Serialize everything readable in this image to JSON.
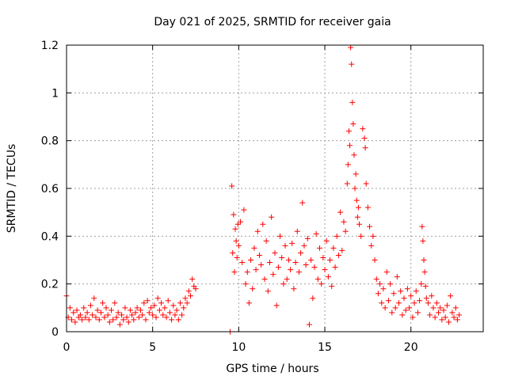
{
  "chart_data": {
    "type": "scatter",
    "title": "Day 021 of 2025, SRMTID for receiver gaia",
    "xlabel": "GPS time / hours",
    "ylabel": "SRMTID / TECUs",
    "xlim": [
      0,
      24.2
    ],
    "ylim": [
      0,
      1.2
    ],
    "xticks": [
      0,
      5,
      10,
      15,
      20
    ],
    "xtick_labels": [
      "0",
      "5",
      "10",
      "15",
      "20"
    ],
    "yticks": [
      0,
      0.2,
      0.4,
      0.6,
      0.8,
      1.0,
      1.2
    ],
    "ytick_labels": [
      "0",
      "0.2",
      "0.4",
      "0.6",
      "0.8",
      "1",
      "1.2"
    ],
    "grid": true,
    "marker": "plus",
    "color": "#ff0000",
    "series": [
      {
        "name": "SRMTID",
        "points": [
          [
            0.0,
            0.15
          ],
          [
            0.1,
            0.06
          ],
          [
            0.2,
            0.1
          ],
          [
            0.3,
            0.05
          ],
          [
            0.4,
            0.08
          ],
          [
            0.5,
            0.04
          ],
          [
            0.6,
            0.09
          ],
          [
            0.7,
            0.06
          ],
          [
            0.8,
            0.07
          ],
          [
            0.9,
            0.05
          ],
          [
            1.0,
            0.1
          ],
          [
            1.1,
            0.06
          ],
          [
            1.2,
            0.08
          ],
          [
            1.3,
            0.05
          ],
          [
            1.4,
            0.11
          ],
          [
            1.5,
            0.07
          ],
          [
            1.6,
            0.14
          ],
          [
            1.7,
            0.06
          ],
          [
            1.8,
            0.09
          ],
          [
            1.9,
            0.05
          ],
          [
            2.0,
            0.08
          ],
          [
            2.1,
            0.12
          ],
          [
            2.2,
            0.06
          ],
          [
            2.3,
            0.1
          ],
          [
            2.4,
            0.07
          ],
          [
            2.5,
            0.04
          ],
          [
            2.6,
            0.09
          ],
          [
            2.7,
            0.05
          ],
          [
            2.8,
            0.12
          ],
          [
            2.9,
            0.06
          ],
          [
            3.0,
            0.08
          ],
          [
            3.1,
            0.03
          ],
          [
            3.2,
            0.07
          ],
          [
            3.3,
            0.05
          ],
          [
            3.4,
            0.1
          ],
          [
            3.5,
            0.06
          ],
          [
            3.6,
            0.04
          ],
          [
            3.7,
            0.09
          ],
          [
            3.8,
            0.07
          ],
          [
            3.9,
            0.05
          ],
          [
            4.0,
            0.08
          ],
          [
            4.1,
            0.1
          ],
          [
            4.2,
            0.06
          ],
          [
            4.3,
            0.09
          ],
          [
            4.4,
            0.07
          ],
          [
            4.5,
            0.12
          ],
          [
            4.6,
            0.05
          ],
          [
            4.7,
            0.13
          ],
          [
            4.8,
            0.08
          ],
          [
            4.9,
            0.1
          ],
          [
            5.0,
            0.07
          ],
          [
            5.1,
            0.11
          ],
          [
            5.2,
            0.06
          ],
          [
            5.3,
            0.14
          ],
          [
            5.4,
            0.09
          ],
          [
            5.5,
            0.12
          ],
          [
            5.6,
            0.07
          ],
          [
            5.7,
            0.1
          ],
          [
            5.8,
            0.06
          ],
          [
            5.9,
            0.13
          ],
          [
            6.0,
            0.08
          ],
          [
            6.1,
            0.05
          ],
          [
            6.2,
            0.11
          ],
          [
            6.3,
            0.07
          ],
          [
            6.4,
            0.09
          ],
          [
            6.5,
            0.05
          ],
          [
            6.6,
            0.12
          ],
          [
            6.7,
            0.07
          ],
          [
            6.8,
            0.1
          ],
          [
            6.9,
            0.14
          ],
          [
            7.0,
            0.12
          ],
          [
            7.1,
            0.17
          ],
          [
            7.2,
            0.15
          ],
          [
            7.3,
            0.22
          ],
          [
            7.4,
            0.19
          ],
          [
            7.5,
            0.18
          ],
          [
            9.5,
            0.0
          ],
          [
            9.6,
            0.61
          ],
          [
            9.65,
            0.33
          ],
          [
            9.7,
            0.49
          ],
          [
            9.75,
            0.25
          ],
          [
            9.8,
            0.43
          ],
          [
            9.85,
            0.38
          ],
          [
            9.9,
            0.31
          ],
          [
            9.95,
            0.45
          ],
          [
            10.0,
            0.36
          ],
          [
            10.1,
            0.46
          ],
          [
            10.2,
            0.29
          ],
          [
            10.3,
            0.51
          ],
          [
            10.4,
            0.2
          ],
          [
            10.5,
            0.25
          ],
          [
            10.6,
            0.12
          ],
          [
            10.7,
            0.3
          ],
          [
            10.8,
            0.18
          ],
          [
            10.9,
            0.35
          ],
          [
            11.0,
            0.26
          ],
          [
            11.1,
            0.42
          ],
          [
            11.2,
            0.32
          ],
          [
            11.3,
            0.28
          ],
          [
            11.4,
            0.45
          ],
          [
            11.5,
            0.22
          ],
          [
            11.6,
            0.38
          ],
          [
            11.7,
            0.17
          ],
          [
            11.8,
            0.29
          ],
          [
            11.9,
            0.48
          ],
          [
            12.0,
            0.24
          ],
          [
            12.1,
            0.33
          ],
          [
            12.2,
            0.11
          ],
          [
            12.3,
            0.27
          ],
          [
            12.4,
            0.4
          ],
          [
            12.5,
            0.31
          ],
          [
            12.6,
            0.2
          ],
          [
            12.7,
            0.36
          ],
          [
            12.8,
            0.22
          ],
          [
            12.9,
            0.3
          ],
          [
            13.0,
            0.26
          ],
          [
            13.1,
            0.37
          ],
          [
            13.2,
            0.18
          ],
          [
            13.3,
            0.29
          ],
          [
            13.4,
            0.42
          ],
          [
            13.5,
            0.25
          ],
          [
            13.6,
            0.33
          ],
          [
            13.7,
            0.54
          ],
          [
            13.8,
            0.36
          ],
          [
            13.9,
            0.28
          ],
          [
            14.0,
            0.39
          ],
          [
            14.1,
            0.03
          ],
          [
            14.2,
            0.3
          ],
          [
            14.3,
            0.14
          ],
          [
            14.4,
            0.27
          ],
          [
            14.5,
            0.41
          ],
          [
            14.6,
            0.22
          ],
          [
            14.7,
            0.35
          ],
          [
            14.8,
            0.2
          ],
          [
            14.9,
            0.31
          ],
          [
            15.0,
            0.26
          ],
          [
            15.1,
            0.38
          ],
          [
            15.2,
            0.23
          ],
          [
            15.3,
            0.3
          ],
          [
            15.4,
            0.19
          ],
          [
            15.5,
            0.35
          ],
          [
            15.6,
            0.27
          ],
          [
            15.7,
            0.4
          ],
          [
            15.8,
            0.32
          ],
          [
            15.9,
            0.5
          ],
          [
            16.0,
            0.34
          ],
          [
            16.1,
            0.46
          ],
          [
            16.2,
            0.42
          ],
          [
            16.3,
            0.62
          ],
          [
            16.35,
            0.7
          ],
          [
            16.4,
            0.84
          ],
          [
            16.45,
            0.78
          ],
          [
            16.5,
            1.19
          ],
          [
            16.55,
            1.12
          ],
          [
            16.6,
            0.96
          ],
          [
            16.65,
            0.87
          ],
          [
            16.7,
            0.74
          ],
          [
            16.75,
            0.6
          ],
          [
            16.8,
            0.66
          ],
          [
            16.85,
            0.55
          ],
          [
            16.9,
            0.48
          ],
          [
            16.95,
            0.52
          ],
          [
            17.0,
            0.45
          ],
          [
            17.1,
            0.4
          ],
          [
            17.2,
            0.85
          ],
          [
            17.3,
            0.81
          ],
          [
            17.35,
            0.77
          ],
          [
            17.4,
            0.62
          ],
          [
            17.5,
            0.52
          ],
          [
            17.6,
            0.44
          ],
          [
            17.7,
            0.36
          ],
          [
            17.8,
            0.4
          ],
          [
            17.9,
            0.3
          ],
          [
            18.0,
            0.22
          ],
          [
            18.1,
            0.16
          ],
          [
            18.2,
            0.2
          ],
          [
            18.3,
            0.12
          ],
          [
            18.4,
            0.18
          ],
          [
            18.5,
            0.1
          ],
          [
            18.6,
            0.25
          ],
          [
            18.7,
            0.13
          ],
          [
            18.8,
            0.2
          ],
          [
            18.9,
            0.08
          ],
          [
            19.0,
            0.16
          ],
          [
            19.1,
            0.1
          ],
          [
            19.2,
            0.23
          ],
          [
            19.3,
            0.12
          ],
          [
            19.4,
            0.17
          ],
          [
            19.5,
            0.07
          ],
          [
            19.6,
            0.14
          ],
          [
            19.7,
            0.09
          ],
          [
            19.8,
            0.18
          ],
          [
            19.9,
            0.1
          ],
          [
            20.0,
            0.15
          ],
          [
            20.1,
            0.06
          ],
          [
            20.2,
            0.12
          ],
          [
            20.3,
            0.17
          ],
          [
            20.4,
            0.08
          ],
          [
            20.5,
            0.13
          ],
          [
            20.6,
            0.2
          ],
          [
            20.65,
            0.44
          ],
          [
            20.7,
            0.38
          ],
          [
            20.75,
            0.3
          ],
          [
            20.8,
            0.25
          ],
          [
            20.85,
            0.19
          ],
          [
            20.9,
            0.14
          ],
          [
            21.0,
            0.12
          ],
          [
            21.1,
            0.07
          ],
          [
            21.2,
            0.15
          ],
          [
            21.3,
            0.1
          ],
          [
            21.4,
            0.06
          ],
          [
            21.5,
            0.12
          ],
          [
            21.6,
            0.08
          ],
          [
            21.7,
            0.1
          ],
          [
            21.8,
            0.05
          ],
          [
            21.9,
            0.09
          ],
          [
            22.0,
            0.06
          ],
          [
            22.1,
            0.11
          ],
          [
            22.2,
            0.04
          ],
          [
            22.3,
            0.15
          ],
          [
            22.4,
            0.08
          ],
          [
            22.5,
            0.06
          ],
          [
            22.6,
            0.1
          ],
          [
            22.7,
            0.05
          ],
          [
            22.8,
            0.07
          ]
        ]
      }
    ]
  }
}
